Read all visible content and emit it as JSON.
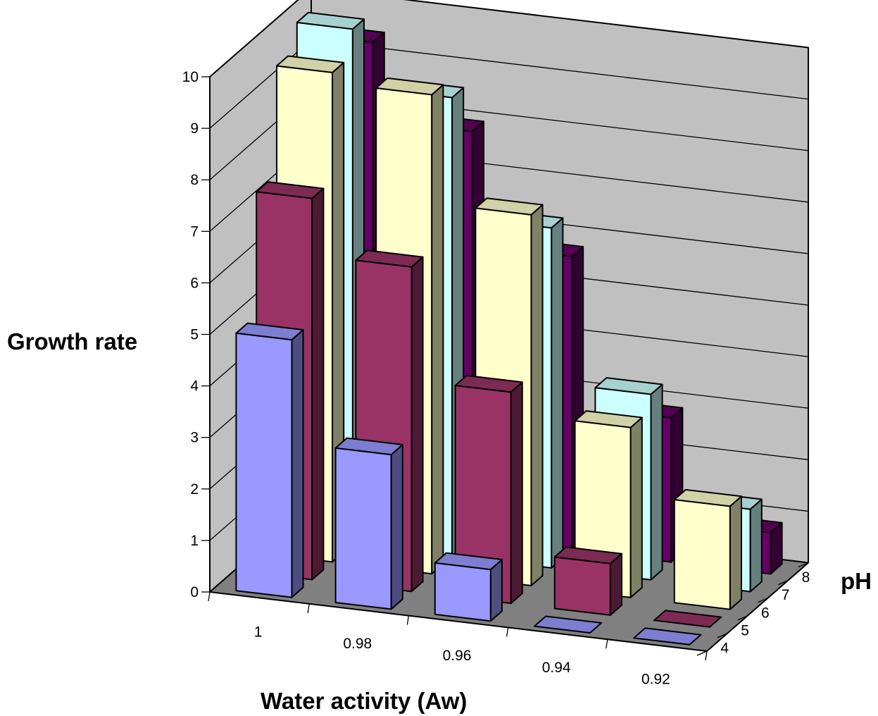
{
  "chart_data": {
    "type": "bar",
    "subtype": "3d-column",
    "title": "",
    "ylabel": "Growth rate",
    "xlabel": "Water activity (Aw)",
    "zlabel": "pH",
    "ylim": [
      0,
      10
    ],
    "y_ticks": [
      "0",
      "1",
      "2",
      "3",
      "4",
      "5",
      "6",
      "7",
      "8",
      "9",
      "10"
    ],
    "categories": [
      "1",
      "0.98",
      "0.96",
      "0.94",
      "0.92"
    ],
    "category_tick_labels": [
      "1",
      "0.98",
      "0.96",
      "0.94",
      "0.92"
    ],
    "series": [
      {
        "name": "4",
        "color": "#9999ff",
        "values": [
          5.0,
          3.0,
          1.0,
          0.0,
          0.0
        ]
      },
      {
        "name": "5",
        "color": "#993366",
        "values": [
          7.4,
          6.3,
          4.1,
          1.0,
          0.0
        ]
      },
      {
        "name": "6",
        "color": "#ffffcc",
        "values": [
          9.5,
          9.3,
          7.2,
          3.3,
          2.0
        ]
      },
      {
        "name": "7",
        "color": "#ccffff",
        "values": [
          10.0,
          8.9,
          6.6,
          3.6,
          1.6
        ]
      },
      {
        "name": "8",
        "color": "#660066",
        "values": [
          9.4,
          7.9,
          5.7,
          2.8,
          0.8
        ]
      }
    ],
    "grid": true,
    "legend": "none",
    "colors": {
      "walls": "#c0c0c0",
      "floor": "#808080",
      "faded_label": "#ffff99"
    }
  }
}
